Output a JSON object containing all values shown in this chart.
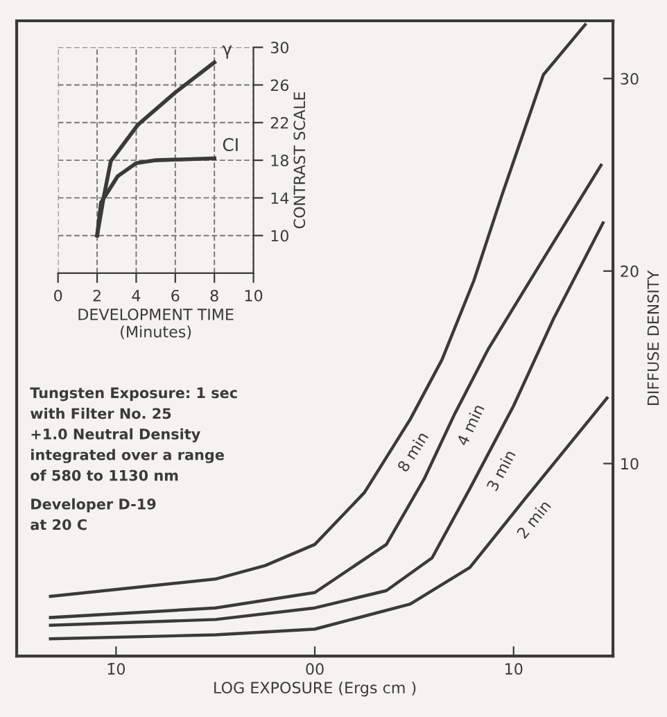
{
  "chart_data": [
    {
      "type": "line",
      "xlabel": "LOG EXPOSURE (Ergs cm )",
      "ylabel": "DIFFUSE DENSITY",
      "xlim": [
        -15,
        15
      ],
      "ylim": [
        0,
        33
      ],
      "xticks": [
        {
          "value": -10,
          "label": "1̄0"
        },
        {
          "value": 0,
          "label": "00"
        },
        10
      ],
      "yticks": [
        10,
        20,
        30
      ],
      "grid": false,
      "legend": false,
      "marker": "none",
      "line_style": "solid",
      "series": [
        {
          "name": "8 min",
          "color": "#3a3a3a",
          "x": [
            -13.3,
            -5,
            -2.5,
            0,
            2.5,
            4.8,
            6.4,
            8,
            9.4,
            11.5,
            13.6
          ],
          "values": [
            3.1,
            4.0,
            4.7,
            5.8,
            8.5,
            12.3,
            15.4,
            19.5,
            23.9,
            30.2,
            32.8
          ]
        },
        {
          "name": "4 min",
          "color": "#3a3a3a",
          "x": [
            -13.3,
            -5,
            0,
            3.6,
            5.5,
            7,
            8.7,
            11.3,
            14.4
          ],
          "values": [
            2.0,
            2.5,
            3.3,
            5.8,
            9.2,
            12.5,
            15.9,
            20.3,
            25.5
          ]
        },
        {
          "name": "3 min",
          "color": "#3a3a3a",
          "x": [
            -13.3,
            -5,
            0,
            3.6,
            5.9,
            7.8,
            10,
            12,
            14.5
          ],
          "values": [
            1.6,
            1.9,
            2.5,
            3.4,
            5.1,
            8.7,
            13.0,
            17.5,
            22.5
          ]
        },
        {
          "name": "2 min",
          "color": "#3a3a3a",
          "x": [
            -13.3,
            -5,
            0,
            4.8,
            7.8,
            10.6,
            14.7
          ],
          "values": [
            0.9,
            1.1,
            1.4,
            2.7,
            4.6,
            8.2,
            13.4
          ]
        }
      ],
      "annotations": [
        "Tungsten Exposure: 1 sec\nwith Filter No. 25\n+1.0 Neutral Density\nintegrated over a range\nof 580 to 1130 nm",
        "Developer D-19\nat 20 C"
      ]
    },
    {
      "type": "line",
      "xlabel": "DEVELOPMENT TIME\n(Minutes)",
      "ylabel": "CONTRAST SCALE",
      "xlim": [
        0,
        10
      ],
      "ylim": [
        6,
        30
      ],
      "xticks": [
        0,
        2,
        4,
        6,
        8,
        10
      ],
      "yticks": [
        10,
        14,
        18,
        22,
        26,
        30
      ],
      "grid": true,
      "legend": false,
      "marker": "none",
      "line_style": "solid",
      "series": [
        {
          "name": "γ",
          "color": "#3a3a3a",
          "x": [
            2.0,
            2.34,
            2.7,
            4.1,
            6.0,
            8.0
          ],
          "values": [
            10.0,
            14.1,
            17.9,
            21.8,
            25.2,
            28.4
          ]
        },
        {
          "name": "CI",
          "color": "#3a3a3a",
          "x": [
            2.0,
            2.2,
            3.05,
            4.0,
            5.0,
            8.0
          ],
          "values": [
            10.0,
            13.5,
            16.3,
            17.7,
            18.0,
            18.2
          ]
        }
      ]
    }
  ]
}
